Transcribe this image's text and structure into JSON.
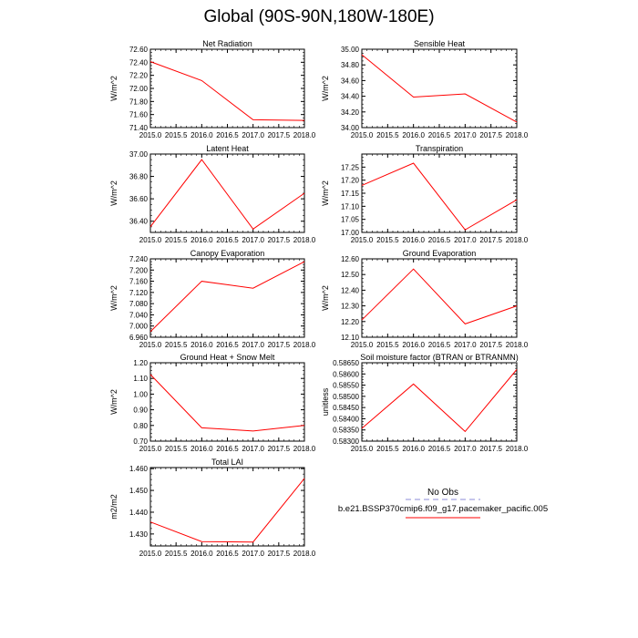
{
  "page": {
    "title": "Global (90S-90N,180W-180E)"
  },
  "colors": {
    "series": "#ff0000",
    "obs": "#b3b3e6",
    "axis": "#000000"
  },
  "legend": {
    "obs_label": "No Obs",
    "model_label": "b.e21.BSSP370cmip6.f09_g17.pacemaker_pacific.005"
  },
  "chart_data": [
    {
      "type": "line",
      "title": "Net Radiation",
      "ylabel": "W/m^2",
      "xlim": [
        2015.0,
        2018.0
      ],
      "ylim": [
        71.4,
        72.6
      ],
      "xticks": [
        "2015.0",
        "2015.5",
        "2016.0",
        "2016.5",
        "2017.0",
        "2017.5",
        "2018.0"
      ],
      "yticks": [
        "71.40",
        "71.60",
        "71.80",
        "72.00",
        "72.20",
        "72.40",
        "72.60"
      ],
      "x": [
        2015,
        2016,
        2017,
        2018
      ],
      "values": [
        72.41,
        72.12,
        71.52,
        71.51
      ]
    },
    {
      "type": "line",
      "title": "Sensible Heat",
      "ylabel": "W/m^2",
      "xlim": [
        2015.0,
        2018.0
      ],
      "ylim": [
        34.0,
        35.0
      ],
      "xticks": [
        "2015.0",
        "2015.5",
        "2016.0",
        "2016.5",
        "2017.0",
        "2017.5",
        "2018.0"
      ],
      "yticks": [
        "34.00",
        "34.20",
        "34.40",
        "34.60",
        "34.80",
        "35.00"
      ],
      "x": [
        2015,
        2016,
        2017,
        2018
      ],
      "values": [
        34.93,
        34.39,
        34.43,
        34.07
      ]
    },
    {
      "type": "line",
      "title": "Latent Heat",
      "ylabel": "W/m^2",
      "xlim": [
        2015.0,
        2018.0
      ],
      "ylim": [
        36.3,
        37.0
      ],
      "xticks": [
        "2015.0",
        "2015.5",
        "2016.0",
        "2016.5",
        "2017.0",
        "2017.5",
        "2018.0"
      ],
      "yticks": [
        "36.40",
        "36.60",
        "36.80",
        "37.00"
      ],
      "x": [
        2015,
        2016,
        2017,
        2018
      ],
      "values": [
        36.35,
        36.95,
        36.33,
        36.65
      ]
    },
    {
      "type": "line",
      "title": "Transpiration",
      "ylabel": "W/m^2",
      "xlim": [
        2015.0,
        2018.0
      ],
      "ylim": [
        17.0,
        17.3
      ],
      "xticks": [
        "2015.0",
        "2015.5",
        "2016.0",
        "2016.5",
        "2017.0",
        "2017.5",
        "2018.0"
      ],
      "yticks": [
        "17.00",
        "17.05",
        "17.10",
        "17.15",
        "17.20",
        "17.25"
      ],
      "x": [
        2015,
        2016,
        2017,
        2018
      ],
      "values": [
        17.18,
        17.265,
        17.01,
        17.125
      ]
    },
    {
      "type": "line",
      "title": "Canopy Evaporation",
      "ylabel": "W/m^2",
      "xlim": [
        2015.0,
        2018.0
      ],
      "ylim": [
        6.96,
        7.24
      ],
      "xticks": [
        "2015.0",
        "2015.5",
        "2016.0",
        "2016.5",
        "2017.0",
        "2017.5",
        "2018.0"
      ],
      "yticks": [
        "6.960",
        "7.000",
        "7.040",
        "7.080",
        "7.120",
        "7.160",
        "7.200",
        "7.240"
      ],
      "x": [
        2015,
        2016,
        2017,
        2018
      ],
      "values": [
        6.98,
        7.16,
        7.135,
        7.23
      ]
    },
    {
      "type": "line",
      "title": "Ground Evaporation",
      "ylabel": "W/m^2",
      "xlim": [
        2015.0,
        2018.0
      ],
      "ylim": [
        12.1,
        12.6
      ],
      "xticks": [
        "2015.0",
        "2015.5",
        "2016.0",
        "2016.5",
        "2017.0",
        "2017.5",
        "2018.0"
      ],
      "yticks": [
        "12.10",
        "12.20",
        "12.30",
        "12.40",
        "12.50",
        "12.60"
      ],
      "x": [
        2015,
        2016,
        2017,
        2018
      ],
      "values": [
        12.21,
        12.535,
        12.185,
        12.3
      ]
    },
    {
      "type": "line",
      "title": "Ground Heat + Snow Melt",
      "ylabel": "W/m^2",
      "xlim": [
        2015.0,
        2018.0
      ],
      "ylim": [
        0.7,
        1.2
      ],
      "xticks": [
        "2015.0",
        "2015.5",
        "2016.0",
        "2016.5",
        "2017.0",
        "2017.5",
        "2018.0"
      ],
      "yticks": [
        "0.70",
        "0.80",
        "0.90",
        "1.00",
        "1.10",
        "1.20"
      ],
      "x": [
        2015,
        2016,
        2017,
        2018
      ],
      "values": [
        1.125,
        0.785,
        0.765,
        0.8
      ]
    },
    {
      "type": "line",
      "title": "Soil moisture factor (BTRAN or BTRANMN)",
      "ylabel": "unitless",
      "xlim": [
        2015.0,
        2018.0
      ],
      "ylim": [
        0.583,
        0.5865
      ],
      "xticks": [
        "2015.0",
        "2015.5",
        "2016.0",
        "2016.5",
        "2017.0",
        "2017.5",
        "2018.0"
      ],
      "yticks": [
        "0.58300",
        "0.58350",
        "0.58400",
        "0.58450",
        "0.58500",
        "0.58550",
        "0.58600",
        "0.58650"
      ],
      "x": [
        2015,
        2016,
        2017,
        2018
      ],
      "values": [
        0.58357,
        0.58555,
        0.58343,
        0.5862
      ]
    },
    {
      "type": "line",
      "title": "Total LAI",
      "ylabel": "m2/m2",
      "xlim": [
        2015.0,
        2018.0
      ],
      "ylim": [
        1.4245,
        1.4605
      ],
      "xticks": [
        "2015.0",
        "2015.5",
        "2016.0",
        "2016.5",
        "2017.0",
        "2017.5",
        "2018.0"
      ],
      "yticks": [
        "1.430",
        "1.440",
        "1.450",
        "1.460"
      ],
      "x": [
        2015,
        2016,
        2017,
        2018
      ],
      "values": [
        1.4355,
        1.4265,
        1.4263,
        1.4555
      ]
    }
  ]
}
